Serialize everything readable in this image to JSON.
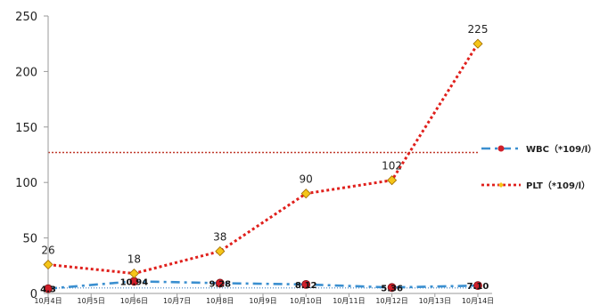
{
  "chart_data": {
    "type": "line",
    "categories": [
      "10月4日",
      "10月5日",
      "10月6日",
      "10月7日",
      "10月8日",
      "10月9日",
      "10月10日",
      "10月11日",
      "10月12日",
      "10月13日",
      "10月14日"
    ],
    "ylim": [
      0,
      250
    ],
    "yticks": [
      0,
      50,
      100,
      150,
      200,
      250
    ],
    "grid": false,
    "legend_position": "right",
    "series": [
      {
        "name": "WBC（*109/l）",
        "color": "#3a8fd0",
        "marker_color": "#d01f2a",
        "style": "dash-dot",
        "x": [
          "10月4日",
          "10月6日",
          "10月8日",
          "10月10日",
          "10月12日",
          "10月14日"
        ],
        "values": [
          4.3,
          10.94,
          9.28,
          8.12,
          5.36,
          7.1
        ],
        "labels": [
          "4.3",
          "10.94",
          "9.28",
          "8.12",
          "5.36",
          "7.10"
        ]
      },
      {
        "name": "PLT（*109/l）",
        "color": "#e0201c",
        "marker_color": "#f5c518",
        "style": "dotted",
        "x": [
          "10月4日",
          "10月6日",
          "10月8日",
          "10月10日",
          "10月12日",
          "10月14日"
        ],
        "values": [
          26,
          18,
          38,
          90,
          102,
          225
        ],
        "labels": [
          "26",
          "18",
          "38",
          "90",
          "102",
          "225"
        ]
      }
    ],
    "reference_lines": [
      {
        "value": 127,
        "color": "#c0392b",
        "style": "dotted"
      },
      {
        "value": 5,
        "color": "#6f9fd0",
        "style": "dotted"
      }
    ]
  }
}
